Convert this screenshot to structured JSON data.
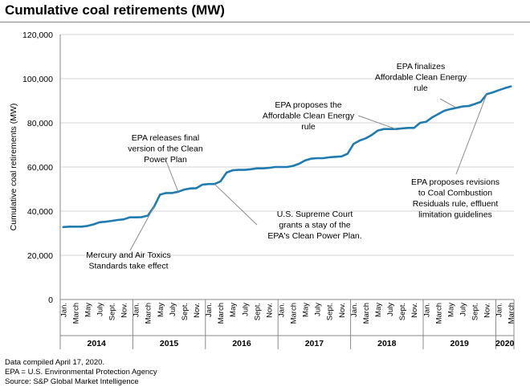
{
  "header": {
    "title": "Cumulative coal retirements (MW)"
  },
  "notes": [
    "Data compiled April 17, 2020.",
    "EPA = U.S. Environmental Protection Agency",
    "Source: S&P Global Market Intelligence"
  ],
  "chart_data": {
    "type": "line",
    "title": "Cumulative coal retirements (MW)",
    "xlabel": "",
    "ylabel": "Cumulative coal retirements (MW)",
    "ylim": [
      0,
      120000
    ],
    "yticks": [
      0,
      20000,
      40000,
      60000,
      80000,
      100000,
      120000
    ],
    "ytick_labels": [
      "0",
      "20,000",
      "40,000",
      "60,000",
      "80,000",
      "100,000",
      "120,000"
    ],
    "grid": "horizontal",
    "color": "#1f7bb0",
    "month_labels": [
      "Jan.",
      "March",
      "May",
      "July",
      "Sept.",
      "Nov."
    ],
    "years": [
      {
        "label": "2014",
        "months": 12
      },
      {
        "label": "2015",
        "months": 12
      },
      {
        "label": "2016",
        "months": 12
      },
      {
        "label": "2017",
        "months": 12
      },
      {
        "label": "2018",
        "months": 12
      },
      {
        "label": "2019",
        "months": 12
      },
      {
        "label": "2020",
        "months": 3
      }
    ],
    "x": [
      "2014-01",
      "2014-02",
      "2014-03",
      "2014-04",
      "2014-05",
      "2014-06",
      "2014-07",
      "2014-08",
      "2014-09",
      "2014-10",
      "2014-11",
      "2014-12",
      "2015-01",
      "2015-02",
      "2015-03",
      "2015-04",
      "2015-05",
      "2015-06",
      "2015-07",
      "2015-08",
      "2015-09",
      "2015-10",
      "2015-11",
      "2015-12",
      "2016-01",
      "2016-02",
      "2016-03",
      "2016-04",
      "2016-05",
      "2016-06",
      "2016-07",
      "2016-08",
      "2016-09",
      "2016-10",
      "2016-11",
      "2016-12",
      "2017-01",
      "2017-02",
      "2017-03",
      "2017-04",
      "2017-05",
      "2017-06",
      "2017-07",
      "2017-08",
      "2017-09",
      "2017-10",
      "2017-11",
      "2017-12",
      "2018-01",
      "2018-02",
      "2018-03",
      "2018-04",
      "2018-05",
      "2018-06",
      "2018-07",
      "2018-08",
      "2018-09",
      "2018-10",
      "2018-11",
      "2018-12",
      "2019-01",
      "2019-02",
      "2019-03",
      "2019-04",
      "2019-05",
      "2019-06",
      "2019-07",
      "2019-08",
      "2019-09",
      "2019-10",
      "2019-11",
      "2019-12",
      "2020-01",
      "2020-02",
      "2020-03"
    ],
    "values": [
      32800,
      33000,
      33000,
      33000,
      33300,
      34000,
      35000,
      35200,
      35600,
      36000,
      36300,
      37200,
      37200,
      37300,
      38000,
      42000,
      47500,
      48200,
      48200,
      48800,
      49800,
      50300,
      50400,
      52000,
      52300,
      52300,
      53500,
      57500,
      58500,
      58700,
      58700,
      59000,
      59400,
      59400,
      59600,
      60000,
      60000,
      60000,
      60500,
      61500,
      63000,
      63800,
      64000,
      64000,
      64400,
      64600,
      64800,
      66000,
      70500,
      72000,
      73000,
      74500,
      76500,
      77200,
      77200,
      77200,
      77500,
      77700,
      77700,
      80000,
      80500,
      82500,
      84000,
      85500,
      86200,
      86800,
      87400,
      87600,
      88500,
      89500,
      93000,
      93800,
      94800,
      95700,
      96500
    ],
    "annotations": [
      {
        "id": "mats",
        "lines": [
          "Mercury and Air Toxics",
          "Standards take effect"
        ],
        "at": "2015-04"
      },
      {
        "id": "cpp-final",
        "lines": [
          "EPA releases final",
          "version of the Clean",
          "Power Plan"
        ],
        "at": "2015-08"
      },
      {
        "id": "stay",
        "lines": [
          "U.S. Supreme Court",
          "grants a stay of the",
          "EPA's Clean Power Plan."
        ],
        "at": "2016-02"
      },
      {
        "id": "ace-propose",
        "lines": [
          "EPA proposes the",
          "Affordable Clean Energy",
          "rule"
        ],
        "at": "2018-08"
      },
      {
        "id": "ace-final",
        "lines": [
          "EPA finalizes",
          "Affordable Clean Energy",
          "rule"
        ],
        "at": "2019-06"
      },
      {
        "id": "ccr",
        "lines": [
          "EPA proposes revisions",
          "to Coal Combustion",
          "Residuals rule, effluent",
          "limitation guidelines"
        ],
        "at": "2019-11"
      }
    ]
  }
}
